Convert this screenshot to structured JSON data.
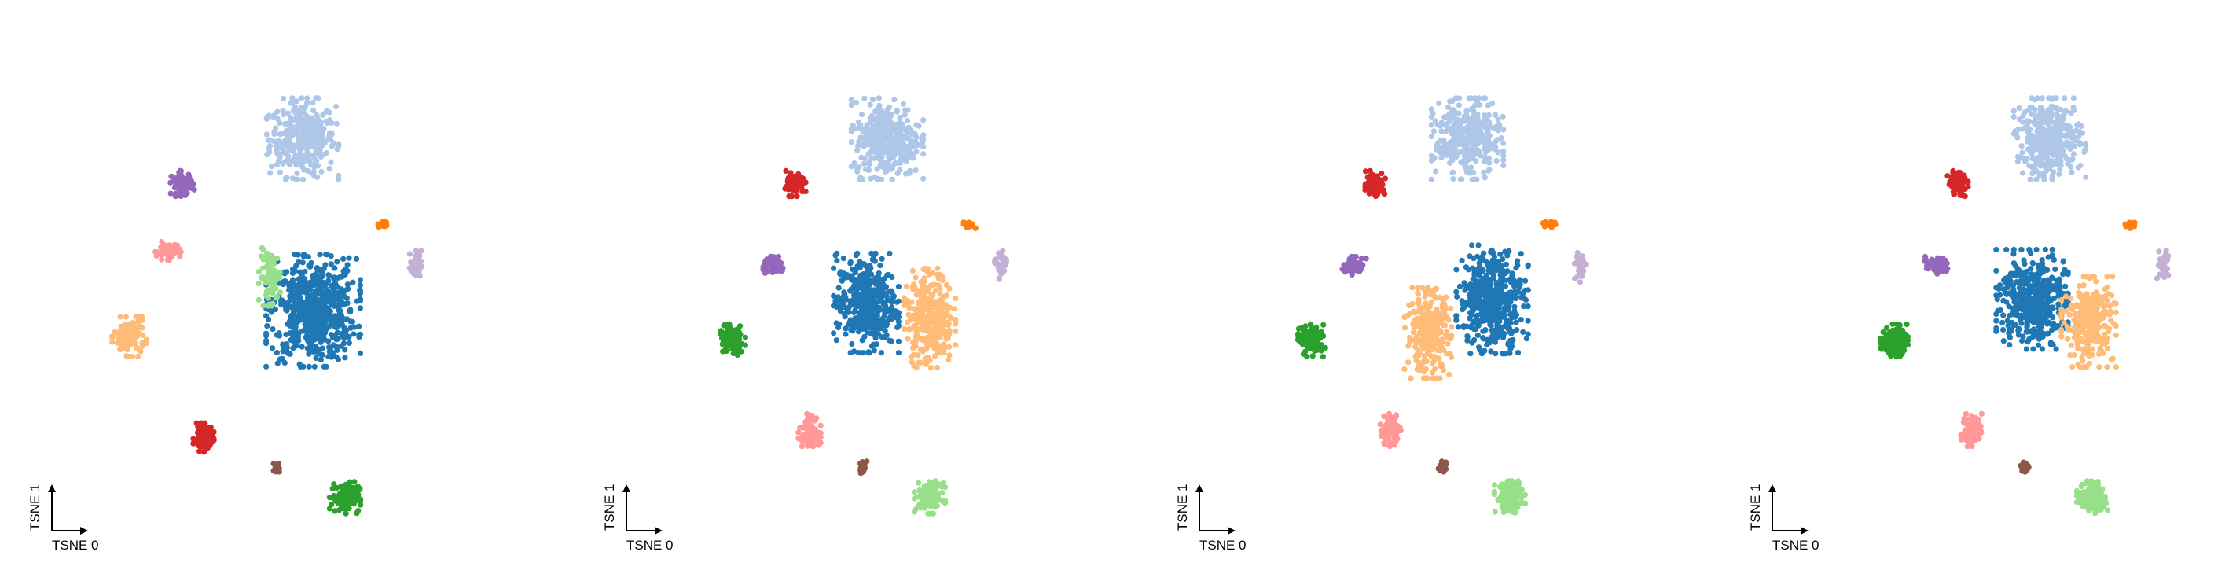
{
  "chart_data": [
    {
      "type": "scatter",
      "panel": 1,
      "xlabel": "TSNE 0",
      "ylabel": "TSNE 1",
      "grid": false,
      "legend": "none",
      "clusters": [
        {
          "color": "#aec7e8",
          "center": [
            0.0,
            2.3
          ],
          "spread": [
            0.42,
            0.45
          ],
          "count": 360
        },
        {
          "color": "#1f77b4",
          "center": [
            0.15,
            0.0
          ],
          "spread": [
            0.55,
            0.62
          ],
          "count": 620
        },
        {
          "color": "#98df8a",
          "center": [
            -0.45,
            0.45
          ],
          "spread": [
            0.14,
            0.32
          ],
          "count": 90
        },
        {
          "color": "#9467bd",
          "center": [
            -1.7,
            1.7
          ],
          "spread": [
            0.14,
            0.14
          ],
          "count": 70
        },
        {
          "color": "#ff9896",
          "center": [
            -1.9,
            0.8
          ],
          "spread": [
            0.15,
            0.1
          ],
          "count": 60
        },
        {
          "color": "#ffbb78",
          "center": [
            -2.45,
            -0.35
          ],
          "spread": [
            0.2,
            0.22
          ],
          "count": 120
        },
        {
          "color": "#d62728",
          "center": [
            -1.4,
            -1.7
          ],
          "spread": [
            0.12,
            0.16
          ],
          "count": 80
        },
        {
          "color": "#8c564b",
          "center": [
            -0.35,
            -2.1
          ],
          "spread": [
            0.05,
            0.07
          ],
          "count": 20
        },
        {
          "color": "#2ca02c",
          "center": [
            0.6,
            -2.5
          ],
          "spread": [
            0.18,
            0.18
          ],
          "count": 130
        },
        {
          "color": "#c5b0d5",
          "center": [
            1.6,
            0.6
          ],
          "spread": [
            0.07,
            0.18
          ],
          "count": 40
        },
        {
          "color": "#ff7f0e",
          "center": [
            1.15,
            1.15
          ],
          "spread": [
            0.08,
            0.04
          ],
          "count": 20
        }
      ]
    },
    {
      "type": "scatter",
      "panel": 2,
      "xlabel": "TSNE 0",
      "ylabel": "TSNE 1",
      "grid": false,
      "legend": "none",
      "clusters": [
        {
          "color": "#aec7e8",
          "center": [
            0.0,
            2.3
          ],
          "spread": [
            0.42,
            0.45
          ],
          "count": 360
        },
        {
          "color": "#1f77b4",
          "center": [
            -0.3,
            0.1
          ],
          "spread": [
            0.38,
            0.55
          ],
          "count": 420
        },
        {
          "color": "#ffbb78",
          "center": [
            0.6,
            -0.1
          ],
          "spread": [
            0.3,
            0.55
          ],
          "count": 320
        },
        {
          "color": "#d62728",
          "center": [
            -1.3,
            1.7
          ],
          "spread": [
            0.12,
            0.14
          ],
          "count": 80
        },
        {
          "color": "#9467bd",
          "center": [
            -1.6,
            0.6
          ],
          "spread": [
            0.14,
            0.1
          ],
          "count": 60
        },
        {
          "color": "#2ca02c",
          "center": [
            -2.2,
            -0.4
          ],
          "spread": [
            0.16,
            0.18
          ],
          "count": 120
        },
        {
          "color": "#ff9896",
          "center": [
            -1.1,
            -1.6
          ],
          "spread": [
            0.13,
            0.18
          ],
          "count": 80
        },
        {
          "color": "#8c564b",
          "center": [
            -0.35,
            -2.1
          ],
          "spread": [
            0.05,
            0.07
          ],
          "count": 20
        },
        {
          "color": "#98df8a",
          "center": [
            0.6,
            -2.5
          ],
          "spread": [
            0.18,
            0.18
          ],
          "count": 130
        },
        {
          "color": "#c5b0d5",
          "center": [
            1.6,
            0.6
          ],
          "spread": [
            0.07,
            0.18
          ],
          "count": 40
        },
        {
          "color": "#ff7f0e",
          "center": [
            1.15,
            1.15
          ],
          "spread": [
            0.08,
            0.04
          ],
          "count": 20
        }
      ]
    },
    {
      "type": "scatter",
      "panel": 3,
      "xlabel": "TSNE 0",
      "ylabel": "TSNE 1",
      "grid": false,
      "legend": "none",
      "clusters": [
        {
          "color": "#aec7e8",
          "center": [
            0.0,
            2.3
          ],
          "spread": [
            0.42,
            0.45
          ],
          "count": 360
        },
        {
          "color": "#1f77b4",
          "center": [
            0.35,
            0.15
          ],
          "spread": [
            0.42,
            0.6
          ],
          "count": 460
        },
        {
          "color": "#ffbb78",
          "center": [
            -0.55,
            -0.3
          ],
          "spread": [
            0.28,
            0.5
          ],
          "count": 280
        },
        {
          "color": "#d62728",
          "center": [
            -1.3,
            1.7
          ],
          "spread": [
            0.12,
            0.14
          ],
          "count": 80
        },
        {
          "color": "#9467bd",
          "center": [
            -1.6,
            0.6
          ],
          "spread": [
            0.14,
            0.1
          ],
          "count": 60
        },
        {
          "color": "#2ca02c",
          "center": [
            -2.2,
            -0.4
          ],
          "spread": [
            0.16,
            0.18
          ],
          "count": 120
        },
        {
          "color": "#ff9896",
          "center": [
            -1.1,
            -1.6
          ],
          "spread": [
            0.13,
            0.18
          ],
          "count": 80
        },
        {
          "color": "#8c564b",
          "center": [
            -0.35,
            -2.1
          ],
          "spread": [
            0.05,
            0.07
          ],
          "count": 20
        },
        {
          "color": "#98df8a",
          "center": [
            0.6,
            -2.5
          ],
          "spread": [
            0.18,
            0.18
          ],
          "count": 130
        },
        {
          "color": "#c5b0d5",
          "center": [
            1.6,
            0.6
          ],
          "spread": [
            0.07,
            0.18
          ],
          "count": 40
        },
        {
          "color": "#ff7f0e",
          "center": [
            1.15,
            1.15
          ],
          "spread": [
            0.08,
            0.04
          ],
          "count": 20
        }
      ]
    },
    {
      "type": "scatter",
      "panel": 4,
      "xlabel": "TSNE 0",
      "ylabel": "TSNE 1",
      "grid": false,
      "legend": "none",
      "clusters": [
        {
          "color": "#aec7e8",
          "center": [
            0.0,
            2.3
          ],
          "spread": [
            0.42,
            0.45
          ],
          "count": 360
        },
        {
          "color": "#1f77b4",
          "center": [
            -0.25,
            0.15
          ],
          "spread": [
            0.42,
            0.55
          ],
          "count": 440
        },
        {
          "color": "#ffbb78",
          "center": [
            0.55,
            -0.15
          ],
          "spread": [
            0.32,
            0.5
          ],
          "count": 300
        },
        {
          "color": "#d62728",
          "center": [
            -1.3,
            1.7
          ],
          "spread": [
            0.12,
            0.14
          ],
          "count": 80
        },
        {
          "color": "#9467bd",
          "center": [
            -1.6,
            0.6
          ],
          "spread": [
            0.14,
            0.1
          ],
          "count": 60
        },
        {
          "color": "#2ca02c",
          "center": [
            -2.2,
            -0.4
          ],
          "spread": [
            0.16,
            0.18
          ],
          "count": 120
        },
        {
          "color": "#ff9896",
          "center": [
            -1.1,
            -1.6
          ],
          "spread": [
            0.13,
            0.18
          ],
          "count": 80
        },
        {
          "color": "#8c564b",
          "center": [
            -0.35,
            -2.1
          ],
          "spread": [
            0.05,
            0.07
          ],
          "count": 20
        },
        {
          "color": "#98df8a",
          "center": [
            0.6,
            -2.5
          ],
          "spread": [
            0.18,
            0.18
          ],
          "count": 130
        },
        {
          "color": "#c5b0d5",
          "center": [
            1.6,
            0.6
          ],
          "spread": [
            0.07,
            0.18
          ],
          "count": 40
        },
        {
          "color": "#ff7f0e",
          "center": [
            1.15,
            1.15
          ],
          "spread": [
            0.08,
            0.04
          ],
          "count": 20
        }
      ]
    }
  ]
}
